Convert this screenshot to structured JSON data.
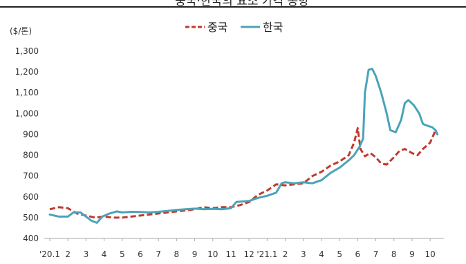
{
  "chart_data": {
    "type": "line",
    "title": "",
    "ylabel": "($/톤)",
    "xlabel": "",
    "ylim": [
      400,
      1300
    ],
    "yticks": [
      400,
      500,
      600,
      700,
      800,
      900,
      1000,
      1100,
      1200,
      1300
    ],
    "ytick_labels": [
      "400",
      "500",
      "600",
      "700",
      "800",
      "900",
      "1,000",
      "1,100",
      "1,200",
      "1,300"
    ],
    "xlim": [
      0,
      21.3
    ],
    "xticks": [
      0,
      1,
      2,
      3,
      4,
      5,
      6,
      7,
      8,
      9,
      10,
      11,
      12,
      13,
      14,
      15,
      16,
      17,
      18,
      19,
      20,
      21
    ],
    "xtick_labels": [
      "'20.1",
      "2",
      "3",
      "4",
      "5",
      "6",
      "7",
      "8",
      "9",
      "10",
      "11",
      "12",
      "'21.1",
      "2",
      "3",
      "4",
      "5",
      "6",
      "7",
      "8",
      "9",
      "10"
    ],
    "grid": false,
    "legend_position": "top-center",
    "series": [
      {
        "name": "중국",
        "color": "#c0392b",
        "dash": true,
        "points": [
          [
            0,
            540
          ],
          [
            0.5,
            550
          ],
          [
            1,
            545
          ],
          [
            1.5,
            520
          ],
          [
            2,
            510
          ],
          [
            2.5,
            500
          ],
          [
            3,
            505
          ],
          [
            3.5,
            500
          ],
          [
            4,
            500
          ],
          [
            4.5,
            505
          ],
          [
            5,
            510
          ],
          [
            5.5,
            515
          ],
          [
            6,
            520
          ],
          [
            6.5,
            525
          ],
          [
            7,
            530
          ],
          [
            7.5,
            535
          ],
          [
            8,
            540
          ],
          [
            8.5,
            550
          ],
          [
            9,
            545
          ],
          [
            9.5,
            550
          ],
          [
            10,
            550
          ],
          [
            10.5,
            560
          ],
          [
            11,
            575
          ],
          [
            11.5,
            610
          ],
          [
            12,
            630
          ],
          [
            12.5,
            660
          ],
          [
            13,
            655
          ],
          [
            13.5,
            660
          ],
          [
            14,
            665
          ],
          [
            14.5,
            700
          ],
          [
            15,
            720
          ],
          [
            15.5,
            750
          ],
          [
            16,
            770
          ],
          [
            16.5,
            800
          ],
          [
            16.8,
            860
          ],
          [
            17.0,
            930
          ],
          [
            17.15,
            830
          ],
          [
            17.4,
            795
          ],
          [
            17.7,
            810
          ],
          [
            18,
            790
          ],
          [
            18.3,
            760
          ],
          [
            18.6,
            755
          ],
          [
            19,
            790
          ],
          [
            19.3,
            820
          ],
          [
            19.6,
            830
          ],
          [
            20,
            810
          ],
          [
            20.3,
            800
          ],
          [
            20.6,
            830
          ],
          [
            21,
            860
          ],
          [
            21.3,
            920
          ]
        ]
      },
      {
        "name": "한국",
        "color": "#4aa3b8",
        "dash": false,
        "points": [
          [
            0,
            515
          ],
          [
            0.5,
            505
          ],
          [
            1,
            505
          ],
          [
            1.3,
            525
          ],
          [
            1.7,
            525
          ],
          [
            2,
            505
          ],
          [
            2.3,
            485
          ],
          [
            2.6,
            475
          ],
          [
            2.9,
            505
          ],
          [
            3.3,
            520
          ],
          [
            3.7,
            530
          ],
          [
            4,
            525
          ],
          [
            4.5,
            528
          ],
          [
            5,
            527
          ],
          [
            5.5,
            525
          ],
          [
            6,
            528
          ],
          [
            6.5,
            532
          ],
          [
            7,
            537
          ],
          [
            7.5,
            540
          ],
          [
            8,
            543
          ],
          [
            8.5,
            540
          ],
          [
            9,
            542
          ],
          [
            9.5,
            540
          ],
          [
            10,
            545
          ],
          [
            10.3,
            575
          ],
          [
            11,
            580
          ],
          [
            11.5,
            595
          ],
          [
            12,
            605
          ],
          [
            12.5,
            620
          ],
          [
            12.8,
            665
          ],
          [
            13,
            670
          ],
          [
            13.5,
            665
          ],
          [
            14,
            670
          ],
          [
            14.5,
            665
          ],
          [
            15,
            680
          ],
          [
            15.5,
            715
          ],
          [
            16,
            740
          ],
          [
            16.5,
            775
          ],
          [
            16.8,
            800
          ],
          [
            17.1,
            840
          ],
          [
            17.3,
            880
          ],
          [
            17.4,
            1100
          ],
          [
            17.6,
            1210
          ],
          [
            17.8,
            1215
          ],
          [
            18.0,
            1180
          ],
          [
            18.3,
            1100
          ],
          [
            18.6,
            1000
          ],
          [
            18.8,
            920
          ],
          [
            19.1,
            910
          ],
          [
            19.4,
            970
          ],
          [
            19.6,
            1050
          ],
          [
            19.8,
            1065
          ],
          [
            20.1,
            1040
          ],
          [
            20.4,
            1000
          ],
          [
            20.6,
            950
          ],
          [
            20.9,
            940
          ],
          [
            21.1,
            935
          ],
          [
            21.3,
            920
          ],
          [
            21.4,
            900
          ]
        ]
      }
    ]
  },
  "title_fragment": "중국·한국의 요소 가격 동향"
}
